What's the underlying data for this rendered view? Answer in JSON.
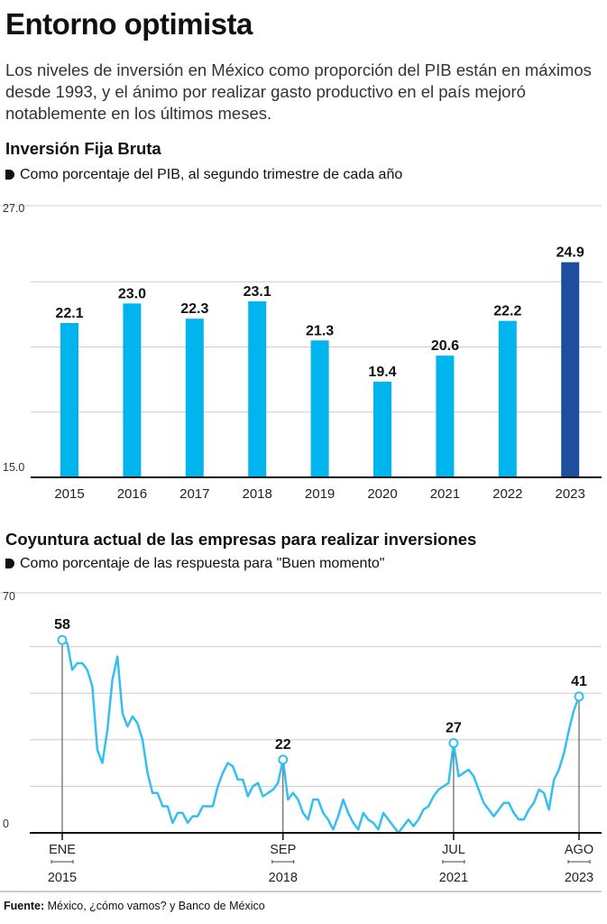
{
  "header": {
    "title": "Entorno optimista",
    "intro": "Los niveles de inversión en México como proporción del PIB están en máximos desde 1993, y el ánimo por realizar gasto productivo en el país mejoró notablemente en los últimos meses."
  },
  "chart1": {
    "title": "Inversión Fija Bruta",
    "subtitle": "Como porcentaje del PIB, al segundo trimestre de cada año"
  },
  "chart2": {
    "title": "Coyuntura actual de las empresas para realizar inversiones",
    "subtitle": "Como porcentaje de las respuesta para \"Buen momento\""
  },
  "footer": {
    "source_label": "Fuente:",
    "source_text": " México, ¿cómo vamos? y Banco de México"
  },
  "colors": {
    "bar": "#00B4EE",
    "bar_highlight": "#1F4E9E",
    "line": "#35BFEF",
    "grid": "#cccccc",
    "axis": "#111111"
  },
  "chart_data": [
    {
      "type": "bar",
      "title": "Inversión Fija Bruta",
      "subtitle": "Como porcentaje del PIB, al segundo trimestre de cada año",
      "categories": [
        "2015",
        "2016",
        "2017",
        "2018",
        "2019",
        "2020",
        "2021",
        "2022",
        "2023"
      ],
      "values": [
        22.1,
        23.0,
        22.3,
        23.1,
        21.3,
        19.4,
        20.6,
        22.2,
        24.9
      ],
      "value_labels": [
        "22.1",
        "23.0",
        "22.3",
        "23.1",
        "21.3",
        "19.4",
        "20.6",
        "22.2",
        "24.9"
      ],
      "highlight_index": 8,
      "ylim": [
        15,
        27
      ],
      "ytick_labels": [
        "15.0",
        "27.0"
      ],
      "grid": true
    },
    {
      "type": "line",
      "title": "Coyuntura actual de las empresas para realizar inversiones",
      "subtitle": "Como porcentaje de las respuesta para \"Buen momento\"",
      "x_start": "2015-01",
      "x_end": "2023-08",
      "x_ticks": [
        {
          "month": "ENE",
          "year": "2015",
          "index": 0
        },
        {
          "month": "SEP",
          "year": "2018",
          "index": 44
        },
        {
          "month": "JUL",
          "year": "2021",
          "index": 78
        },
        {
          "month": "AGO",
          "year": "2023",
          "index": 103
        }
      ],
      "ylim": [
        0,
        70
      ],
      "ytick_labels": [
        "0",
        "70"
      ],
      "annotations": [
        {
          "index": 0,
          "value": 58,
          "label": "58"
        },
        {
          "index": 44,
          "value": 22,
          "label": "22"
        },
        {
          "index": 78,
          "value": 27,
          "label": "27"
        },
        {
          "index": 103,
          "value": 41,
          "label": "41"
        }
      ],
      "values": [
        58,
        57,
        49,
        51,
        51,
        49,
        44,
        25,
        21,
        31,
        46,
        53,
        36,
        32,
        35,
        33,
        28,
        18,
        12,
        12,
        8,
        8,
        3,
        6,
        6,
        3,
        5,
        5,
        8,
        8,
        8,
        14,
        18,
        21,
        20,
        16,
        16,
        11,
        14,
        15,
        11,
        12,
        13,
        15,
        22,
        10,
        12,
        10,
        6,
        4,
        10,
        10,
        6,
        4,
        1,
        5,
        10,
        6,
        3,
        1,
        6,
        4,
        3,
        1,
        6,
        4,
        2,
        0,
        2,
        4,
        2,
        4,
        7,
        8,
        11,
        13,
        14,
        15,
        27,
        17,
        18,
        19,
        17,
        13,
        9,
        7,
        5,
        7,
        9,
        9,
        6,
        4,
        4,
        7,
        9,
        13,
        12,
        7,
        16,
        19,
        24,
        31,
        37,
        41
      ]
    }
  ]
}
